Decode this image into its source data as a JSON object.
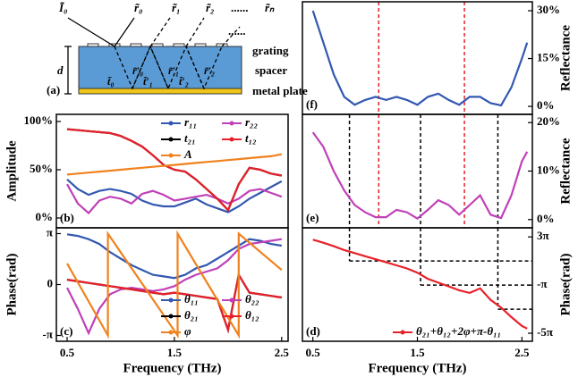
{
  "diagram": {
    "panel_label": "(a)",
    "incident": "Ĩ₀",
    "reflected": [
      "r̃₀",
      "r̃₁",
      "r̃₂",
      "......",
      "r̃ₙ"
    ],
    "inner": [
      "t̃₀",
      "r̃′₀",
      "t̃′₁",
      "r̃′₁",
      "t̃′₂",
      "r̃′₂"
    ],
    "inner_more": "......",
    "layers": [
      "grating",
      "spacer",
      "metal plate"
    ],
    "thickness": "d"
  },
  "chart_data": [
    {
      "type": "line",
      "panel_label": "(b)",
      "ylabel": "Amplitude",
      "legend": "upper right",
      "x": [
        0.5,
        0.6,
        0.7,
        0.8,
        0.9,
        1.0,
        1.1,
        1.2,
        1.3,
        1.4,
        1.5,
        1.6,
        1.7,
        1.8,
        1.9,
        2.0,
        2.1,
        2.2,
        2.3,
        2.4,
        2.5
      ],
      "xlim": [
        0.4,
        2.56
      ],
      "ylim": [
        -10.2,
        107.4
      ],
      "yticks": [
        {
          "value": 0,
          "label": "0%"
        },
        {
          "value": 50,
          "label": "50%"
        },
        {
          "value": 100,
          "label": "100%"
        }
      ],
      "series": [
        {
          "name": "r₁₁",
          "color": "#3358b0",
          "values": [
            40,
            30,
            24,
            28,
            30,
            28,
            25,
            18,
            14,
            12,
            12,
            16,
            20,
            14,
            10,
            6,
            12,
            20,
            26,
            32,
            38
          ]
        },
        {
          "name": "r₂₂",
          "color": "#c040b8",
          "values": [
            35,
            15,
            5,
            18,
            22,
            20,
            15,
            25,
            28,
            24,
            18,
            20,
            22,
            24,
            20,
            15,
            20,
            28,
            30,
            26,
            22
          ]
        },
        {
          "name": "t₂₁",
          "color": "#000000",
          "values": [
            92,
            91,
            90,
            89,
            88,
            85,
            80,
            74,
            65,
            55,
            50,
            48,
            40,
            30,
            20,
            8,
            35,
            52,
            50,
            46,
            44
          ]
        },
        {
          "name": "t₁₂",
          "color": "#e8202a",
          "values": [
            92,
            91,
            90,
            89,
            88,
            85,
            80,
            74,
            65,
            55,
            50,
            48,
            40,
            30,
            20,
            8,
            35,
            52,
            50,
            46,
            44
          ]
        },
        {
          "name": "A",
          "color": "#f0821e",
          "values": [
            45,
            46,
            47,
            48,
            49,
            50,
            51,
            52,
            53,
            54,
            55,
            56,
            57,
            58,
            59,
            60,
            61,
            62,
            63,
            64,
            66
          ]
        }
      ]
    },
    {
      "type": "line",
      "panel_label": "(c)",
      "ylabel": "Phase(rad)",
      "xlabel": "Frequency (THz)",
      "legend": "lower right",
      "x": [
        0.5,
        0.6,
        0.7,
        0.8,
        0.9,
        1.0,
        1.1,
        1.2,
        1.3,
        1.4,
        1.5,
        1.6,
        1.7,
        1.8,
        1.9,
        2.0,
        2.1,
        2.2,
        2.3,
        2.4,
        2.5
      ],
      "xlim": [
        0.4,
        2.56
      ],
      "ylim": [
        -3.5,
        3.5
      ],
      "xticks": [
        0.5,
        1.5,
        2.5
      ],
      "yticks": [
        {
          "value": -3.1416,
          "label": "-π"
        },
        0,
        {
          "value": 3.1416,
          "label": "π"
        }
      ],
      "series": [
        {
          "name": "θ₁₁",
          "color": "#3358b0",
          "values": [
            3.1,
            3.0,
            2.8,
            2.5,
            2.0,
            1.6,
            1.2,
            0.9,
            0.6,
            0.5,
            0.4,
            0.6,
            1.0,
            1.2,
            1.6,
            2.0,
            2.4,
            2.8,
            2.7,
            2.5,
            2.4
          ]
        },
        {
          "name": "θ₂₂",
          "color": "#c040b8",
          "values": [
            -0.2,
            -1.5,
            -3.0,
            -1.5,
            -0.6,
            -0.3,
            -0.2,
            -0.3,
            -0.4,
            -0.3,
            -0.1,
            0.3,
            0.6,
            0.8,
            1.0,
            1.5,
            2.2,
            2.5,
            2.6,
            2.7,
            2.8
          ]
        },
        {
          "name": "θ₂₁",
          "color": "#000000",
          "values": [
            0.3,
            0.2,
            0.1,
            0.0,
            -0.1,
            -0.2,
            -0.3,
            -0.4,
            -0.5,
            -0.6,
            -0.5,
            -0.6,
            -0.7,
            -0.8,
            -0.9,
            -2.8,
            0.6,
            -0.5,
            -0.6,
            -0.7,
            -0.8
          ]
        },
        {
          "name": "θ₁₂",
          "color": "#e8202a",
          "values": [
            0.3,
            0.2,
            0.1,
            0.0,
            -0.1,
            -0.2,
            -0.3,
            -0.4,
            -0.5,
            -0.6,
            -0.5,
            -0.6,
            -0.7,
            -0.8,
            -0.9,
            -2.8,
            0.6,
            -0.5,
            -0.6,
            -0.7,
            -0.8
          ]
        },
        {
          "name": "φ",
          "color": "#f0821e",
          "x": [
            0.5,
            0.88,
            0.88,
            1.53,
            1.53,
            2.1,
            2.1,
            2.5
          ],
          "values": [
            1.3,
            -3.14,
            3.14,
            -3.14,
            3.14,
            -3.14,
            3.14,
            0.9
          ]
        }
      ]
    },
    {
      "type": "line",
      "panel_label": "(f)",
      "ylabel": "Reflectance",
      "x": [
        0.5,
        0.6,
        0.7,
        0.8,
        0.9,
        1.0,
        1.1,
        1.2,
        1.3,
        1.4,
        1.5,
        1.6,
        1.7,
        1.8,
        1.9,
        2.0,
        2.1,
        2.2,
        2.3,
        2.4,
        2.5,
        2.55
      ],
      "xlim": [
        0.4,
        2.6
      ],
      "ylim": [
        -2.5,
        32.8
      ],
      "yticks": [
        {
          "value": 0,
          "label": "0%"
        },
        {
          "value": 15,
          "label": "15%"
        },
        {
          "value": 30,
          "label": "30%"
        }
      ],
      "guides": [
        {
          "x": 1.13,
          "color": "#e8202a"
        },
        {
          "x": 1.95,
          "color": "#e8202a"
        }
      ],
      "series": [
        {
          "color": "#3358b0",
          "values": [
            30,
            20,
            10,
            3,
            0.5,
            2,
            3,
            2,
            3,
            2,
            0.5,
            3,
            4,
            2,
            0.5,
            3,
            3,
            1,
            0.3,
            6,
            15,
            20
          ]
        }
      ]
    },
    {
      "type": "line",
      "panel_label": "(e)",
      "ylabel": "Reflectance",
      "x": [
        0.5,
        0.6,
        0.7,
        0.8,
        0.9,
        1.0,
        1.1,
        1.2,
        1.3,
        1.4,
        1.5,
        1.6,
        1.7,
        1.8,
        1.9,
        2.0,
        2.1,
        2.2,
        2.3,
        2.4,
        2.5,
        2.55
      ],
      "xlim": [
        0.4,
        2.6
      ],
      "ylim": [
        -1.7,
        21.7
      ],
      "yticks": [
        {
          "value": 0,
          "label": "0%"
        },
        {
          "value": 10,
          "label": "10%"
        },
        {
          "value": 20,
          "label": "20%"
        }
      ],
      "guides": [
        {
          "x": 0.85,
          "color": "#000000"
        },
        {
          "x": 1.53,
          "color": "#000000"
        },
        {
          "x": 2.27,
          "color": "#000000"
        },
        {
          "x": 1.13,
          "color": "#e8202a"
        },
        {
          "x": 1.95,
          "color": "#e8202a"
        }
      ],
      "series": [
        {
          "color": "#c040b8",
          "values": [
            18,
            15,
            10,
            6,
            3,
            1.5,
            0.5,
            0.5,
            2,
            1.5,
            0.2,
            2,
            4,
            3,
            1,
            3,
            5,
            1,
            0.3,
            5,
            12,
            14
          ]
        }
      ]
    },
    {
      "type": "line",
      "panel_label": "(d)",
      "ylabel": "Phase(rad)",
      "xlabel": "Frequency (THz)",
      "legend": "lower right",
      "x": [
        0.5,
        0.6,
        0.7,
        0.8,
        0.9,
        1.0,
        1.1,
        1.2,
        1.3,
        1.4,
        1.5,
        1.6,
        1.7,
        1.8,
        1.9,
        2.0,
        2.1,
        2.2,
        2.3,
        2.4,
        2.5,
        2.55
      ],
      "xlim": [
        0.4,
        2.6
      ],
      "ylim": [
        -17.8,
        11.8
      ],
      "xticks": [
        0.5,
        1.5,
        2.5
      ],
      "yticks": [
        {
          "value": -15.708,
          "label": "-5π"
        },
        {
          "value": -3.1416,
          "label": "-π"
        },
        {
          "value": 9.4248,
          "label": "3π"
        }
      ],
      "guides": [
        {
          "x": 0.85,
          "y": 3.1416,
          "color": "#000000"
        },
        {
          "x": 1.53,
          "y": -3.1416,
          "color": "#000000"
        },
        {
          "x": 2.27,
          "y": -9.4248,
          "color": "#000000"
        }
      ],
      "series": [
        {
          "name": "θ₂₁+θ₁₂+2φ+π-θ₁₁",
          "color": "#e8202a",
          "values": [
            8.7,
            7.9,
            7,
            6,
            5.2,
            4.4,
            3.6,
            2.8,
            2.0,
            1.2,
            0.1,
            -1.5,
            -2.5,
            -3.5,
            -4.5,
            -5.2,
            -4.0,
            -7,
            -9,
            -11.5,
            -13.8,
            -14.5
          ]
        }
      ]
    }
  ]
}
